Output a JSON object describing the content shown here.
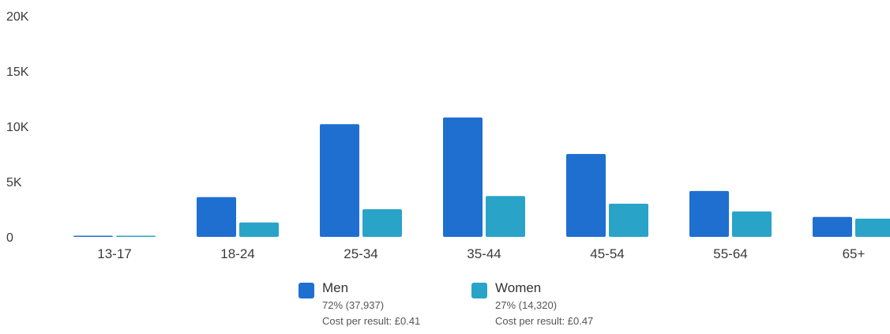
{
  "chart_data": {
    "type": "bar",
    "categories": [
      "13-17",
      "18-24",
      "25-34",
      "35-44",
      "45-54",
      "55-64",
      "65+"
    ],
    "series": [
      {
        "name": "Men",
        "color": "#1f6fd1",
        "values": [
          60,
          3600,
          10200,
          10800,
          7500,
          4150,
          1800
        ]
      },
      {
        "name": "Women",
        "color": "#2aa3c9",
        "values": [
          50,
          1300,
          2500,
          3700,
          3000,
          2300,
          1650
        ]
      }
    ],
    "yticks": [
      {
        "value": 0,
        "label": "0"
      },
      {
        "value": 5000,
        "label": "5K"
      },
      {
        "value": 10000,
        "label": "10K"
      },
      {
        "value": 15000,
        "label": "15K"
      },
      {
        "value": 20000,
        "label": "20K"
      }
    ],
    "ylim": [
      0,
      20000
    ],
    "title": "",
    "xlabel": "",
    "ylabel": "",
    "grid": false,
    "legend_placement": "bottom-center"
  },
  "legend": {
    "men": {
      "name": "Men",
      "share": "72% (37,937)",
      "cost": "Cost per result: £0.41",
      "color": "#1f6fd1"
    },
    "women": {
      "name": "Women",
      "share": "27% (14,320)",
      "cost": "Cost per result: £0.47",
      "color": "#2aa3c9"
    }
  }
}
